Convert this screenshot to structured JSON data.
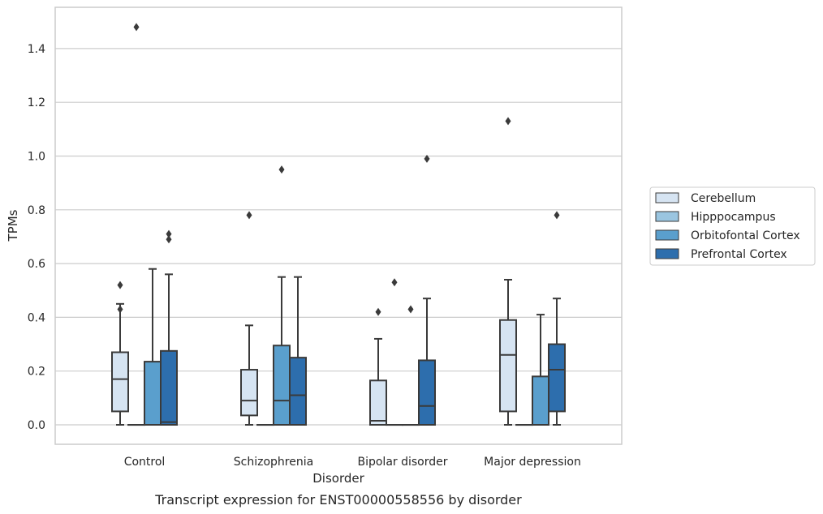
{
  "chart_data": {
    "type": "box",
    "xlabel": "Disorder",
    "ylabel": "TPMs",
    "caption": "Transcript expression for ENST00000558556 by disorder",
    "ylim": [
      -0.07,
      1.56
    ],
    "yticks": [
      "0.0",
      "0.2",
      "0.4",
      "0.6",
      "0.8",
      "1.0",
      "1.2",
      "1.4"
    ],
    "grid": true,
    "legend_position": "right",
    "categories": [
      "Control",
      "Schizophrenia",
      "Bipolar disorder",
      "Major depression"
    ],
    "series": [
      {
        "name": "Cerebellum",
        "color": "#d6e4f2",
        "boxes": [
          {
            "whislo": 0.0,
            "q1": 0.05,
            "med": 0.17,
            "q3": 0.27,
            "whishi": 0.45,
            "fliers": [
              0.52,
              0.43
            ]
          },
          {
            "whislo": 0.0,
            "q1": 0.035,
            "med": 0.09,
            "q3": 0.205,
            "whishi": 0.37,
            "fliers": [
              0.78
            ]
          },
          {
            "whislo": 0.0,
            "q1": 0.0,
            "med": 0.015,
            "q3": 0.165,
            "whishi": 0.32,
            "fliers": [
              0.42
            ]
          },
          {
            "whislo": 0.0,
            "q1": 0.05,
            "med": 0.26,
            "q3": 0.39,
            "whishi": 0.54,
            "fliers": [
              1.13
            ]
          }
        ]
      },
      {
        "name": "Hipppocampus",
        "color": "#9ac5e0",
        "boxes": [
          {
            "whislo": 0.0,
            "q1": 0.0,
            "med": 0.0,
            "q3": 0.0,
            "whishi": 0.0,
            "fliers": [
              1.48
            ]
          },
          {
            "whislo": 0.0,
            "q1": 0.0,
            "med": 0.0,
            "q3": 0.0,
            "whishi": 0.0,
            "fliers": []
          },
          {
            "whislo": 0.0,
            "q1": 0.0,
            "med": 0.0,
            "q3": 0.0,
            "whishi": 0.0,
            "fliers": [
              0.53
            ]
          },
          {
            "whislo": 0.0,
            "q1": 0.0,
            "med": 0.0,
            "q3": 0.0,
            "whishi": 0.0,
            "fliers": []
          }
        ]
      },
      {
        "name": "Orbitofontal Cortex",
        "color": "#5a9fcd",
        "boxes": [
          {
            "whislo": 0.0,
            "q1": 0.0,
            "med": 0.0,
            "q3": 0.235,
            "whishi": 0.58,
            "fliers": []
          },
          {
            "whislo": 0.0,
            "q1": 0.0,
            "med": 0.09,
            "q3": 0.295,
            "whishi": 0.55,
            "fliers": [
              0.95
            ]
          },
          {
            "whislo": 0.0,
            "q1": 0.0,
            "med": 0.0,
            "q3": 0.0,
            "whishi": 0.0,
            "fliers": [
              0.43
            ]
          },
          {
            "whislo": 0.0,
            "q1": 0.0,
            "med": 0.0,
            "q3": 0.18,
            "whishi": 0.41,
            "fliers": []
          }
        ]
      },
      {
        "name": "Prefrontal Cortex",
        "color": "#2d6ead",
        "boxes": [
          {
            "whislo": 0.0,
            "q1": 0.0,
            "med": 0.01,
            "q3": 0.275,
            "whishi": 0.56,
            "fliers": [
              0.71,
              0.69
            ]
          },
          {
            "whislo": 0.0,
            "q1": 0.0,
            "med": 0.11,
            "q3": 0.25,
            "whishi": 0.55,
            "fliers": []
          },
          {
            "whislo": 0.0,
            "q1": 0.0,
            "med": 0.07,
            "q3": 0.24,
            "whishi": 0.47,
            "fliers": [
              0.99
            ]
          },
          {
            "whislo": 0.0,
            "q1": 0.05,
            "med": 0.205,
            "q3": 0.3,
            "whishi": 0.47,
            "fliers": [
              0.78
            ]
          }
        ]
      }
    ]
  }
}
